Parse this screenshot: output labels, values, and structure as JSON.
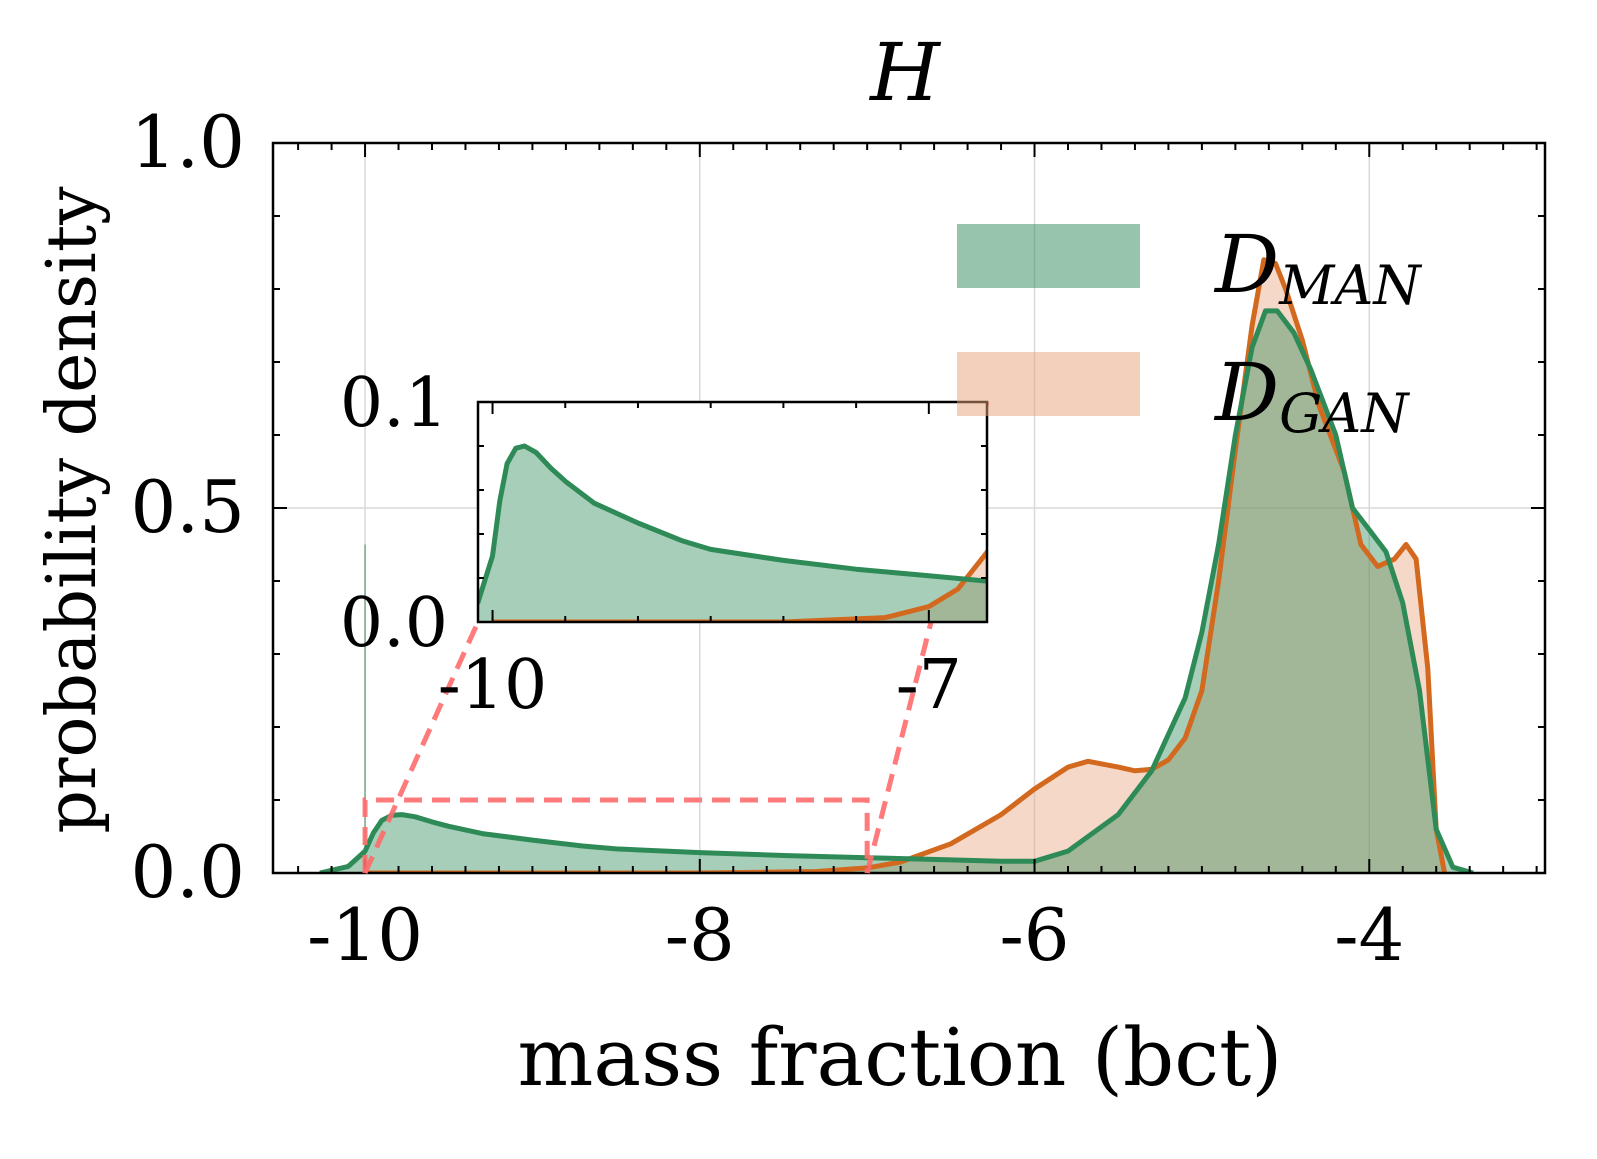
{
  "chart_data": {
    "type": "area",
    "title": "H",
    "xlabel": "mass fraction (bct)",
    "ylabel": "probability density",
    "xlim": [
      -10.55,
      -2.95
    ],
    "ylim": [
      0,
      1.0
    ],
    "xticks": [
      -10,
      -8,
      -6,
      -4
    ],
    "xtick_labels": [
      "-10",
      "-8",
      "-6",
      "-4"
    ],
    "yticks": [
      0.0,
      0.5,
      1.0
    ],
    "ytick_labels": [
      "0.0",
      "0.5",
      "1.0"
    ],
    "grid": true,
    "legend_position": "top-right",
    "series": [
      {
        "name": "D_MAN",
        "legend_main": "D",
        "legend_sub": "MAN",
        "color": "#2e8b57",
        "fill": "#2e8b57",
        "points": [
          [
            -10.27,
            0.0
          ],
          [
            -10.1,
            0.009
          ],
          [
            -10.0,
            0.03
          ],
          [
            -9.95,
            0.055
          ],
          [
            -9.9,
            0.072
          ],
          [
            -9.84,
            0.079
          ],
          [
            -9.78,
            0.08
          ],
          [
            -9.7,
            0.077
          ],
          [
            -9.6,
            0.07
          ],
          [
            -9.5,
            0.064
          ],
          [
            -9.3,
            0.054
          ],
          [
            -9.0,
            0.045
          ],
          [
            -8.7,
            0.037
          ],
          [
            -8.5,
            0.033
          ],
          [
            -8.0,
            0.028
          ],
          [
            -7.5,
            0.024
          ],
          [
            -7.0,
            0.021
          ],
          [
            -6.5,
            0.018
          ],
          [
            -6.2,
            0.016
          ],
          [
            -6.0,
            0.016
          ],
          [
            -5.8,
            0.03
          ],
          [
            -5.5,
            0.08
          ],
          [
            -5.3,
            0.14
          ],
          [
            -5.1,
            0.24
          ],
          [
            -5.0,
            0.33
          ],
          [
            -4.9,
            0.45
          ],
          [
            -4.8,
            0.6
          ],
          [
            -4.7,
            0.72
          ],
          [
            -4.62,
            0.77
          ],
          [
            -4.55,
            0.77
          ],
          [
            -4.45,
            0.74
          ],
          [
            -4.35,
            0.69
          ],
          [
            -4.2,
            0.6
          ],
          [
            -4.1,
            0.5
          ],
          [
            -4.0,
            0.47
          ],
          [
            -3.9,
            0.44
          ],
          [
            -3.8,
            0.37
          ],
          [
            -3.7,
            0.25
          ],
          [
            -3.6,
            0.06
          ],
          [
            -3.5,
            0.008
          ],
          [
            -3.38,
            0.0
          ]
        ]
      },
      {
        "name": "D_GAN",
        "legend_main": "D",
        "legend_sub": "GAN",
        "color": "#d2691e",
        "fill": "#e8a27a",
        "points": [
          [
            -10.0,
            0.0
          ],
          [
            -8.0,
            0.0
          ],
          [
            -7.3,
            0.002
          ],
          [
            -7.0,
            0.007
          ],
          [
            -6.8,
            0.015
          ],
          [
            -6.5,
            0.04
          ],
          [
            -6.2,
            0.08
          ],
          [
            -6.0,
            0.115
          ],
          [
            -5.8,
            0.145
          ],
          [
            -5.68,
            0.153
          ],
          [
            -5.5,
            0.145
          ],
          [
            -5.4,
            0.14
          ],
          [
            -5.3,
            0.142
          ],
          [
            -5.2,
            0.155
          ],
          [
            -5.1,
            0.185
          ],
          [
            -5.0,
            0.25
          ],
          [
            -4.9,
            0.4
          ],
          [
            -4.8,
            0.58
          ],
          [
            -4.7,
            0.75
          ],
          [
            -4.63,
            0.84
          ],
          [
            -4.56,
            0.835
          ],
          [
            -4.5,
            0.8
          ],
          [
            -4.4,
            0.73
          ],
          [
            -4.3,
            0.64
          ],
          [
            -4.15,
            0.55
          ],
          [
            -4.05,
            0.45
          ],
          [
            -3.95,
            0.42
          ],
          [
            -3.85,
            0.43
          ],
          [
            -3.78,
            0.45
          ],
          [
            -3.72,
            0.43
          ],
          [
            -3.65,
            0.28
          ],
          [
            -3.6,
            0.06
          ],
          [
            -3.55,
            0.0
          ]
        ]
      }
    ],
    "inset": {
      "xlim": [
        -10.1,
        -6.6
      ],
      "ylim": [
        0.0,
        0.1
      ],
      "xtick_labels": [
        "-10",
        "-7"
      ],
      "xticks": [
        -10,
        -7
      ],
      "ytick_labels": [
        "0.0",
        "0.1"
      ],
      "yticks": [
        0.0,
        0.1
      ],
      "zoom_box": {
        "x": [
          -10.0,
          -7.0
        ],
        "y": [
          0.0,
          0.1
        ]
      },
      "zoom_color": "#ff6b6b"
    }
  }
}
